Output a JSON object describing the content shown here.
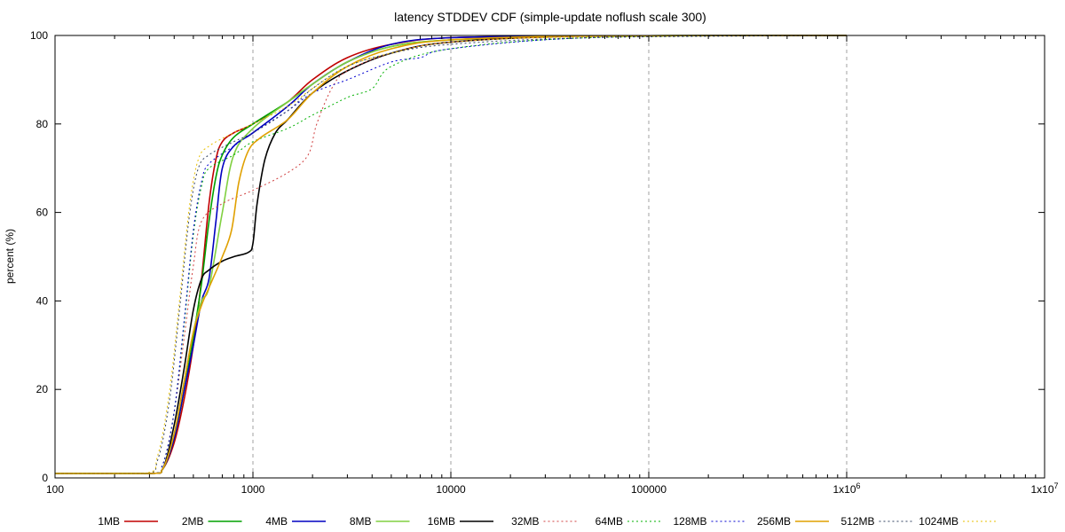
{
  "chart_data": {
    "type": "line",
    "title": "latency STDDEV CDF (simple-update noflush scale 300)",
    "xlabel": "",
    "ylabel": "percent (%)",
    "xscale": "log",
    "xlim": [
      100,
      10000000
    ],
    "ylim": [
      0,
      100
    ],
    "x_ticks": [
      {
        "value": 100,
        "label": "100",
        "sup": ""
      },
      {
        "value": 1000,
        "label": "1000",
        "sup": ""
      },
      {
        "value": 10000,
        "label": "10000",
        "sup": ""
      },
      {
        "value": 100000,
        "label": "100000",
        "sup": ""
      },
      {
        "value": 1000000,
        "label": "1x10",
        "sup": "6"
      },
      {
        "value": 10000000,
        "label": "1x10",
        "sup": "7"
      }
    ],
    "y_ticks": [
      "0",
      "20",
      "40",
      "60",
      "80",
      "100"
    ],
    "grid": "vertical dashed at major x ticks",
    "legend_placement": "bottom",
    "series": [
      {
        "name": "1MB",
        "color": "#c00000",
        "style": "solid",
        "points": [
          [
            100,
            1
          ],
          [
            300,
            1
          ],
          [
            350,
            2
          ],
          [
            400,
            8
          ],
          [
            450,
            18
          ],
          [
            500,
            30
          ],
          [
            550,
            45
          ],
          [
            600,
            62
          ],
          [
            650,
            72
          ],
          [
            700,
            76
          ],
          [
            800,
            78
          ],
          [
            1000,
            80
          ],
          [
            1500,
            85
          ],
          [
            2000,
            90
          ],
          [
            3000,
            95
          ],
          [
            5000,
            98
          ],
          [
            10000,
            99.5
          ],
          [
            50000,
            99.9
          ],
          [
            1000000,
            100
          ]
        ]
      },
      {
        "name": "2MB",
        "color": "#00a000",
        "style": "solid",
        "points": [
          [
            100,
            1
          ],
          [
            300,
            1
          ],
          [
            350,
            2
          ],
          [
            400,
            9
          ],
          [
            450,
            20
          ],
          [
            500,
            32
          ],
          [
            550,
            44
          ],
          [
            600,
            58
          ],
          [
            650,
            68
          ],
          [
            700,
            73
          ],
          [
            800,
            77
          ],
          [
            1000,
            80
          ],
          [
            1500,
            85
          ],
          [
            2000,
            89
          ],
          [
            3000,
            94
          ],
          [
            5000,
            97.5
          ],
          [
            10000,
            99
          ],
          [
            50000,
            99.9
          ],
          [
            1000000,
            100
          ]
        ]
      },
      {
        "name": "4MB",
        "color": "#0000c0",
        "style": "solid",
        "points": [
          [
            100,
            1
          ],
          [
            300,
            1
          ],
          [
            350,
            2
          ],
          [
            400,
            9
          ],
          [
            450,
            20
          ],
          [
            500,
            30
          ],
          [
            550,
            40
          ],
          [
            600,
            45
          ],
          [
            650,
            58
          ],
          [
            700,
            70
          ],
          [
            800,
            75
          ],
          [
            1000,
            78
          ],
          [
            1500,
            84
          ],
          [
            2000,
            89
          ],
          [
            3000,
            94
          ],
          [
            5000,
            98
          ],
          [
            10000,
            99.5
          ],
          [
            50000,
            99.9
          ],
          [
            1000000,
            100
          ]
        ]
      },
      {
        "name": "8MB",
        "color": "#80d040",
        "style": "solid",
        "points": [
          [
            100,
            1
          ],
          [
            300,
            1
          ],
          [
            350,
            2
          ],
          [
            400,
            10
          ],
          [
            450,
            22
          ],
          [
            500,
            33
          ],
          [
            550,
            40
          ],
          [
            600,
            43
          ],
          [
            700,
            60
          ],
          [
            800,
            73
          ],
          [
            1000,
            79
          ],
          [
            1500,
            85
          ],
          [
            2000,
            89
          ],
          [
            3000,
            94
          ],
          [
            5000,
            97.5
          ],
          [
            10000,
            99
          ],
          [
            50000,
            99.9
          ],
          [
            1000000,
            100
          ]
        ]
      },
      {
        "name": "16MB",
        "color": "#000000",
        "style": "solid",
        "points": [
          [
            100,
            1
          ],
          [
            300,
            1
          ],
          [
            350,
            2
          ],
          [
            400,
            12
          ],
          [
            450,
            25
          ],
          [
            500,
            38
          ],
          [
            550,
            45
          ],
          [
            600,
            47
          ],
          [
            700,
            49
          ],
          [
            800,
            50
          ],
          [
            950,
            51
          ],
          [
            1000,
            53
          ],
          [
            1050,
            62
          ],
          [
            1150,
            72
          ],
          [
            1300,
            78
          ],
          [
            1500,
            81
          ],
          [
            2000,
            87
          ],
          [
            3000,
            92
          ],
          [
            5000,
            96
          ],
          [
            10000,
            98.5
          ],
          [
            50000,
            99.9
          ],
          [
            1000000,
            100
          ]
        ]
      },
      {
        "name": "32MB",
        "color": "#d04040",
        "style": "dotted",
        "points": [
          [
            100,
            1
          ],
          [
            300,
            1
          ],
          [
            350,
            3
          ],
          [
            400,
            15
          ],
          [
            450,
            32
          ],
          [
            500,
            48
          ],
          [
            550,
            58
          ],
          [
            700,
            62
          ],
          [
            1000,
            65
          ],
          [
            1500,
            69
          ],
          [
            1900,
            73
          ],
          [
            2100,
            80
          ],
          [
            2500,
            88
          ],
          [
            3000,
            92
          ],
          [
            5000,
            96
          ],
          [
            10000,
            98.5
          ],
          [
            50000,
            99.8
          ],
          [
            1000000,
            100
          ]
        ]
      },
      {
        "name": "64MB",
        "color": "#00b000",
        "style": "dotted",
        "points": [
          [
            100,
            1
          ],
          [
            300,
            1
          ],
          [
            350,
            3
          ],
          [
            400,
            15
          ],
          [
            450,
            35
          ],
          [
            500,
            55
          ],
          [
            550,
            66
          ],
          [
            600,
            70
          ],
          [
            800,
            73
          ],
          [
            1000,
            76
          ],
          [
            1500,
            79
          ],
          [
            2000,
            82
          ],
          [
            3000,
            86
          ],
          [
            4000,
            88
          ],
          [
            5000,
            93
          ],
          [
            10000,
            97
          ],
          [
            50000,
            99.5
          ],
          [
            1000000,
            100
          ]
        ]
      },
      {
        "name": "128MB",
        "color": "#0000d0",
        "style": "dotted",
        "points": [
          [
            100,
            1
          ],
          [
            300,
            1
          ],
          [
            350,
            3
          ],
          [
            400,
            15
          ],
          [
            450,
            36
          ],
          [
            500,
            56
          ],
          [
            550,
            67
          ],
          [
            600,
            71
          ],
          [
            800,
            75
          ],
          [
            1000,
            78
          ],
          [
            1500,
            83
          ],
          [
            2000,
            87
          ],
          [
            3000,
            90
          ],
          [
            5000,
            94
          ],
          [
            7000,
            95
          ],
          [
            10000,
            97
          ],
          [
            50000,
            99.5
          ],
          [
            1000000,
            100
          ]
        ]
      },
      {
        "name": "256MB",
        "color": "#e0a000",
        "style": "solid",
        "points": [
          [
            100,
            1
          ],
          [
            300,
            1
          ],
          [
            350,
            2
          ],
          [
            400,
            10
          ],
          [
            450,
            22
          ],
          [
            500,
            33
          ],
          [
            550,
            39
          ],
          [
            600,
            43
          ],
          [
            700,
            50
          ],
          [
            780,
            56
          ],
          [
            850,
            67
          ],
          [
            950,
            74
          ],
          [
            1100,
            77
          ],
          [
            1500,
            81
          ],
          [
            2000,
            87
          ],
          [
            3000,
            93
          ],
          [
            5000,
            97
          ],
          [
            10000,
            99
          ],
          [
            50000,
            99.9
          ],
          [
            1000000,
            100
          ]
        ]
      },
      {
        "name": "512MB",
        "color": "#304060",
        "style": "dotted",
        "points": [
          [
            100,
            1
          ],
          [
            280,
            1
          ],
          [
            330,
            4
          ],
          [
            380,
            18
          ],
          [
            430,
            40
          ],
          [
            480,
            60
          ],
          [
            530,
            70
          ],
          [
            600,
            73
          ],
          [
            800,
            76
          ],
          [
            1000,
            78
          ],
          [
            1500,
            83
          ],
          [
            2000,
            88
          ],
          [
            3000,
            93
          ],
          [
            5000,
            96
          ],
          [
            10000,
            98
          ],
          [
            50000,
            99.5
          ],
          [
            1000000,
            100
          ]
        ]
      },
      {
        "name": "1024MB",
        "color": "#e8c000",
        "style": "dotted",
        "points": [
          [
            100,
            1
          ],
          [
            280,
            1
          ],
          [
            330,
            5
          ],
          [
            380,
            20
          ],
          [
            430,
            42
          ],
          [
            480,
            62
          ],
          [
            530,
            72
          ],
          [
            600,
            75
          ],
          [
            800,
            78
          ],
          [
            1000,
            80
          ],
          [
            1500,
            84
          ],
          [
            2000,
            88
          ],
          [
            3000,
            93
          ],
          [
            5000,
            96
          ],
          [
            10000,
            98.5
          ],
          [
            50000,
            99.7
          ],
          [
            1000000,
            100
          ]
        ]
      }
    ]
  }
}
